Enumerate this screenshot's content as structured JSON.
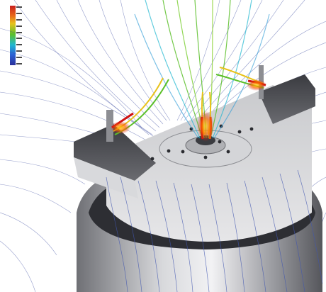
{
  "scene": {
    "subject": "",
    "legend_colors": [
      "#c81e1e",
      "#e8641a",
      "#e8c21a",
      "#5cc02a",
      "#1fb7d0",
      "#2a63d6",
      "#2a2f9a"
    ]
  }
}
